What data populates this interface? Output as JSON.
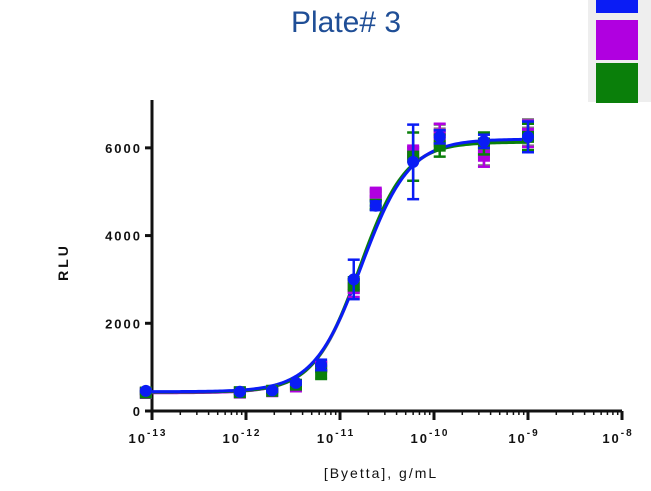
{
  "chart_data": {
    "type": "scatter",
    "title": "Plate# 3",
    "xlabel": "[Byetta], g/mL",
    "ylabel": "RLU",
    "x_scale": "log",
    "xlim": [
      1e-13,
      1e-08
    ],
    "ylim": [
      0,
      7000
    ],
    "x_ticks": [
      {
        "value": 1e-13,
        "base": "10",
        "exp": "-13"
      },
      {
        "value": 1e-12,
        "base": "10",
        "exp": "-12"
      },
      {
        "value": 1e-11,
        "base": "10",
        "exp": "-11"
      },
      {
        "value": 1e-10,
        "base": "10",
        "exp": "-10"
      },
      {
        "value": 1e-09,
        "base": "10",
        "exp": "-9"
      },
      {
        "value": 1e-08,
        "base": "10",
        "exp": "-8"
      }
    ],
    "y_ticks": [
      {
        "value": 0,
        "label": "0"
      },
      {
        "value": 2000,
        "label": "2000"
      },
      {
        "value": 4000,
        "label": "4000"
      },
      {
        "value": 6000,
        "label": "6000"
      }
    ],
    "grid": false,
    "legend_position": "top-right",
    "series": [
      {
        "color": "#7f7f7f",
        "marker": "square",
        "points": [
          {
            "x": 8.6e-14,
            "y": 420,
            "err": 30
          },
          {
            "x": 8.6e-13,
            "y": 420,
            "err": 30
          },
          {
            "x": 1.9e-12,
            "y": 460,
            "err": 30
          },
          {
            "x": 3.4e-12,
            "y": 560,
            "err": 40
          },
          {
            "x": 6.3e-12,
            "y": 1000,
            "err": 100
          },
          {
            "x": 1.4e-11,
            "y": 2850,
            "err": 150
          },
          {
            "x": 2.4e-11,
            "y": 4920,
            "err": 80
          },
          {
            "x": 6e-11,
            "y": 5900,
            "err": 100
          },
          {
            "x": 1.15e-10,
            "y": 6330,
            "err": 200
          },
          {
            "x": 3.4e-10,
            "y": 5900,
            "err": 300
          },
          {
            "x": 1e-09,
            "y": 6350,
            "err": 300
          }
        ],
        "fit": {
          "bottom": 420,
          "top": 6150,
          "logEC50": -10.78,
          "hill": 1.75
        }
      },
      {
        "color": "#b000e0",
        "marker": "square",
        "points": [
          {
            "x": 8.6e-14,
            "y": 410,
            "err": 30
          },
          {
            "x": 8.6e-13,
            "y": 420,
            "err": 30
          },
          {
            "x": 1.9e-12,
            "y": 450,
            "err": 30
          },
          {
            "x": 3.4e-12,
            "y": 560,
            "err": 40
          },
          {
            "x": 6.3e-12,
            "y": 1020,
            "err": 100
          },
          {
            "x": 1.4e-11,
            "y": 2800,
            "err": 200
          },
          {
            "x": 2.4e-11,
            "y": 4980,
            "err": 80
          },
          {
            "x": 6e-11,
            "y": 5900,
            "err": 150
          },
          {
            "x": 1.15e-10,
            "y": 6300,
            "err": 250
          },
          {
            "x": 3.4e-10,
            "y": 5820,
            "err": 250
          },
          {
            "x": 1e-09,
            "y": 6320,
            "err": 300
          }
        ],
        "fit": {
          "bottom": 415,
          "top": 6180,
          "logEC50": -10.78,
          "hill": 1.72
        }
      },
      {
        "color": "#0a7f0a",
        "marker": "square",
        "points": [
          {
            "x": 8.6e-14,
            "y": 420,
            "err": 30
          },
          {
            "x": 8.6e-13,
            "y": 430,
            "err": 30
          },
          {
            "x": 1.9e-12,
            "y": 460,
            "err": 30
          },
          {
            "x": 3.4e-12,
            "y": 600,
            "err": 40
          },
          {
            "x": 6.3e-12,
            "y": 880,
            "err": 150
          },
          {
            "x": 1.4e-11,
            "y": 2900,
            "err": 150
          },
          {
            "x": 2.4e-11,
            "y": 4700,
            "err": 100
          },
          {
            "x": 6e-11,
            "y": 5800,
            "err": 550
          },
          {
            "x": 1.15e-10,
            "y": 6050,
            "err": 250
          },
          {
            "x": 3.4e-10,
            "y": 6100,
            "err": 250
          },
          {
            "x": 1e-09,
            "y": 6250,
            "err": 300
          }
        ],
        "fit": {
          "bottom": 430,
          "top": 6130,
          "logEC50": -10.79,
          "hill": 1.78
        }
      },
      {
        "color": "#0a1cf5",
        "marker": "circle",
        "points": [
          {
            "x": 8.6e-14,
            "y": 460,
            "err": 30
          },
          {
            "x": 8.6e-13,
            "y": 440,
            "err": 30
          },
          {
            "x": 1.9e-12,
            "y": 470,
            "err": 30
          },
          {
            "x": 3.4e-12,
            "y": 640,
            "err": 40
          },
          {
            "x": 6.3e-12,
            "y": 1050,
            "err": 120
          },
          {
            "x": 1.4e-11,
            "y": 3000,
            "err": 450
          },
          {
            "x": 2.4e-11,
            "y": 4680,
            "err": 100
          },
          {
            "x": 6e-11,
            "y": 5680,
            "err": 850
          },
          {
            "x": 1.15e-10,
            "y": 6250,
            "err": 150
          },
          {
            "x": 3.4e-10,
            "y": 6150,
            "err": 150
          },
          {
            "x": 1e-09,
            "y": 6250,
            "err": 350
          }
        ],
        "fit": {
          "bottom": 440,
          "top": 6200,
          "logEC50": -10.77,
          "hill": 1.7
        }
      }
    ]
  }
}
